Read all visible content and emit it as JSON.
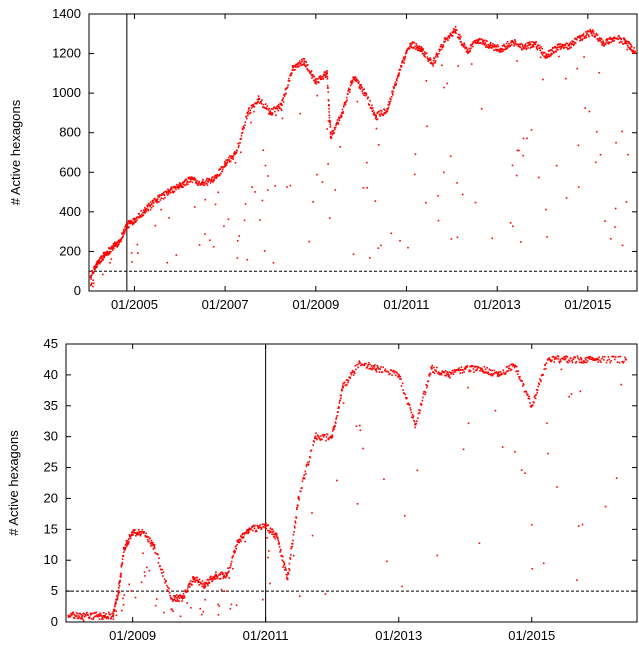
{
  "chart_data": [
    {
      "type": "scatter",
      "ylabel": "# Active hexagons",
      "xlabel": "",
      "ylim": [
        0,
        1400
      ],
      "xlim": [
        "2004-01-01",
        "2016-02-01"
      ],
      "y_ticks": [
        0,
        200,
        400,
        600,
        800,
        1000,
        1200,
        1400
      ],
      "x_ticks": [
        {
          "date": "2005-01-01",
          "label": "01/2005"
        },
        {
          "date": "2007-01-01",
          "label": "01/2007"
        },
        {
          "date": "2009-01-01",
          "label": "01/2009"
        },
        {
          "date": "2011-01-01",
          "label": "01/2011"
        },
        {
          "date": "2013-01-01",
          "label": "01/2013"
        },
        {
          "date": "2015-01-01",
          "label": "01/2015"
        }
      ],
      "grid": false,
      "reference_lines": [
        {
          "orientation": "horizontal",
          "y": 100,
          "style": "dashed"
        },
        {
          "orientation": "vertical",
          "x": "2004-11-01",
          "style": "solid"
        }
      ],
      "series": [
        {
          "color": "#ff0000",
          "points": [
            [
              "2004-01-15",
              70
            ],
            [
              "2004-03-01",
              130
            ],
            [
              "2004-05-01",
              180
            ],
            [
              "2004-07-01",
              215
            ],
            [
              "2004-09-01",
              250
            ],
            [
              "2004-11-01",
              330
            ],
            [
              "2005-01-01",
              360
            ],
            [
              "2005-04-01",
              410
            ],
            [
              "2005-07-01",
              460
            ],
            [
              "2005-10-01",
              500
            ],
            [
              "2006-01-01",
              530
            ],
            [
              "2006-04-01",
              565
            ],
            [
              "2006-07-01",
              545
            ],
            [
              "2006-10-01",
              560
            ],
            [
              "2007-01-01",
              640
            ],
            [
              "2007-04-01",
              700
            ],
            [
              "2007-07-01",
              900
            ],
            [
              "2007-10-01",
              970
            ],
            [
              "2008-01-01",
              900
            ],
            [
              "2008-04-01",
              940
            ],
            [
              "2008-07-01",
              1130
            ],
            [
              "2008-10-01",
              1160
            ],
            [
              "2009-01-01",
              1060
            ],
            [
              "2009-04-01",
              1100
            ],
            [
              "2009-05-01",
              780
            ],
            [
              "2009-08-01",
              900
            ],
            [
              "2009-11-01",
              1080
            ],
            [
              "2010-02-01",
              1000
            ],
            [
              "2010-05-01",
              880
            ],
            [
              "2010-08-01",
              920
            ],
            [
              "2010-11-01",
              1100
            ],
            [
              "2011-02-01",
              1250
            ],
            [
              "2011-05-01",
              1220
            ],
            [
              "2011-08-01",
              1150
            ],
            [
              "2011-11-01",
              1260
            ],
            [
              "2012-02-01",
              1320
            ],
            [
              "2012-05-01",
              1210
            ],
            [
              "2012-08-01",
              1270
            ],
            [
              "2012-11-01",
              1240
            ],
            [
              "2013-02-01",
              1220
            ],
            [
              "2013-05-01",
              1260
            ],
            [
              "2013-08-01",
              1230
            ],
            [
              "2013-11-01",
              1250
            ],
            [
              "2014-02-01",
              1190
            ],
            [
              "2014-05-01",
              1230
            ],
            [
              "2014-08-01",
              1240
            ],
            [
              "2014-11-01",
              1280
            ],
            [
              "2015-02-01",
              1310
            ],
            [
              "2015-05-01",
              1250
            ],
            [
              "2015-08-01",
              1280
            ],
            [
              "2015-11-01",
              1260
            ],
            [
              "2016-01-15",
              1210
            ]
          ]
        }
      ]
    },
    {
      "type": "scatter",
      "ylabel": "# Active hexagons",
      "xlabel": "",
      "ylim": [
        0,
        45
      ],
      "xlim": [
        "2008-01-01",
        "2016-08-01"
      ],
      "y_ticks": [
        0,
        5,
        10,
        15,
        20,
        25,
        30,
        35,
        40,
        45
      ],
      "x_ticks": [
        {
          "date": "2009-01-01",
          "label": "01/2009"
        },
        {
          "date": "2011-01-01",
          "label": "01/2011"
        },
        {
          "date": "2013-01-01",
          "label": "01/2013"
        },
        {
          "date": "2015-01-01",
          "label": "01/2015"
        }
      ],
      "grid": false,
      "reference_lines": [
        {
          "orientation": "horizontal",
          "y": 5,
          "style": "dashed"
        },
        {
          "orientation": "vertical",
          "x": "2011-01-01",
          "style": "solid"
        }
      ],
      "series": [
        {
          "color": "#ff0000",
          "points": [
            [
              "2008-01-15",
              1
            ],
            [
              "2008-04-01",
              1
            ],
            [
              "2008-07-01",
              1
            ],
            [
              "2008-09-15",
              1
            ],
            [
              "2008-10-15",
              5
            ],
            [
              "2008-11-15",
              12
            ],
            [
              "2009-01-01",
              14.5
            ],
            [
              "2009-03-01",
              14.5
            ],
            [
              "2009-05-01",
              12
            ],
            [
              "2009-08-01",
              3.8
            ],
            [
              "2009-10-01",
              3.8
            ],
            [
              "2009-12-01",
              7
            ],
            [
              "2010-02-01",
              6
            ],
            [
              "2010-04-01",
              7.5
            ],
            [
              "2010-06-01",
              7.5
            ],
            [
              "2010-08-01",
              13
            ],
            [
              "2010-10-01",
              15
            ],
            [
              "2011-01-01",
              15.5
            ],
            [
              "2011-03-01",
              14
            ],
            [
              "2011-05-01",
              7
            ],
            [
              "2011-07-01",
              20
            ],
            [
              "2011-10-01",
              30
            ],
            [
              "2012-01-01",
              30
            ],
            [
              "2012-03-01",
              38
            ],
            [
              "2012-06-01",
              42
            ],
            [
              "2012-09-01",
              41
            ],
            [
              "2013-01-01",
              40
            ],
            [
              "2013-04-01",
              32
            ],
            [
              "2013-07-01",
              41
            ],
            [
              "2013-10-01",
              40
            ],
            [
              "2014-01-01",
              41
            ],
            [
              "2014-04-01",
              41
            ],
            [
              "2014-07-01",
              40
            ],
            [
              "2014-10-01",
              41.5
            ],
            [
              "2015-01-01",
              35
            ],
            [
              "2015-04-01",
              42.5
            ],
            [
              "2015-07-01",
              42.5
            ],
            [
              "2015-10-01",
              42.5
            ],
            [
              "2016-01-01",
              42.5
            ],
            [
              "2016-06-01",
              42.5
            ]
          ]
        }
      ]
    }
  ]
}
